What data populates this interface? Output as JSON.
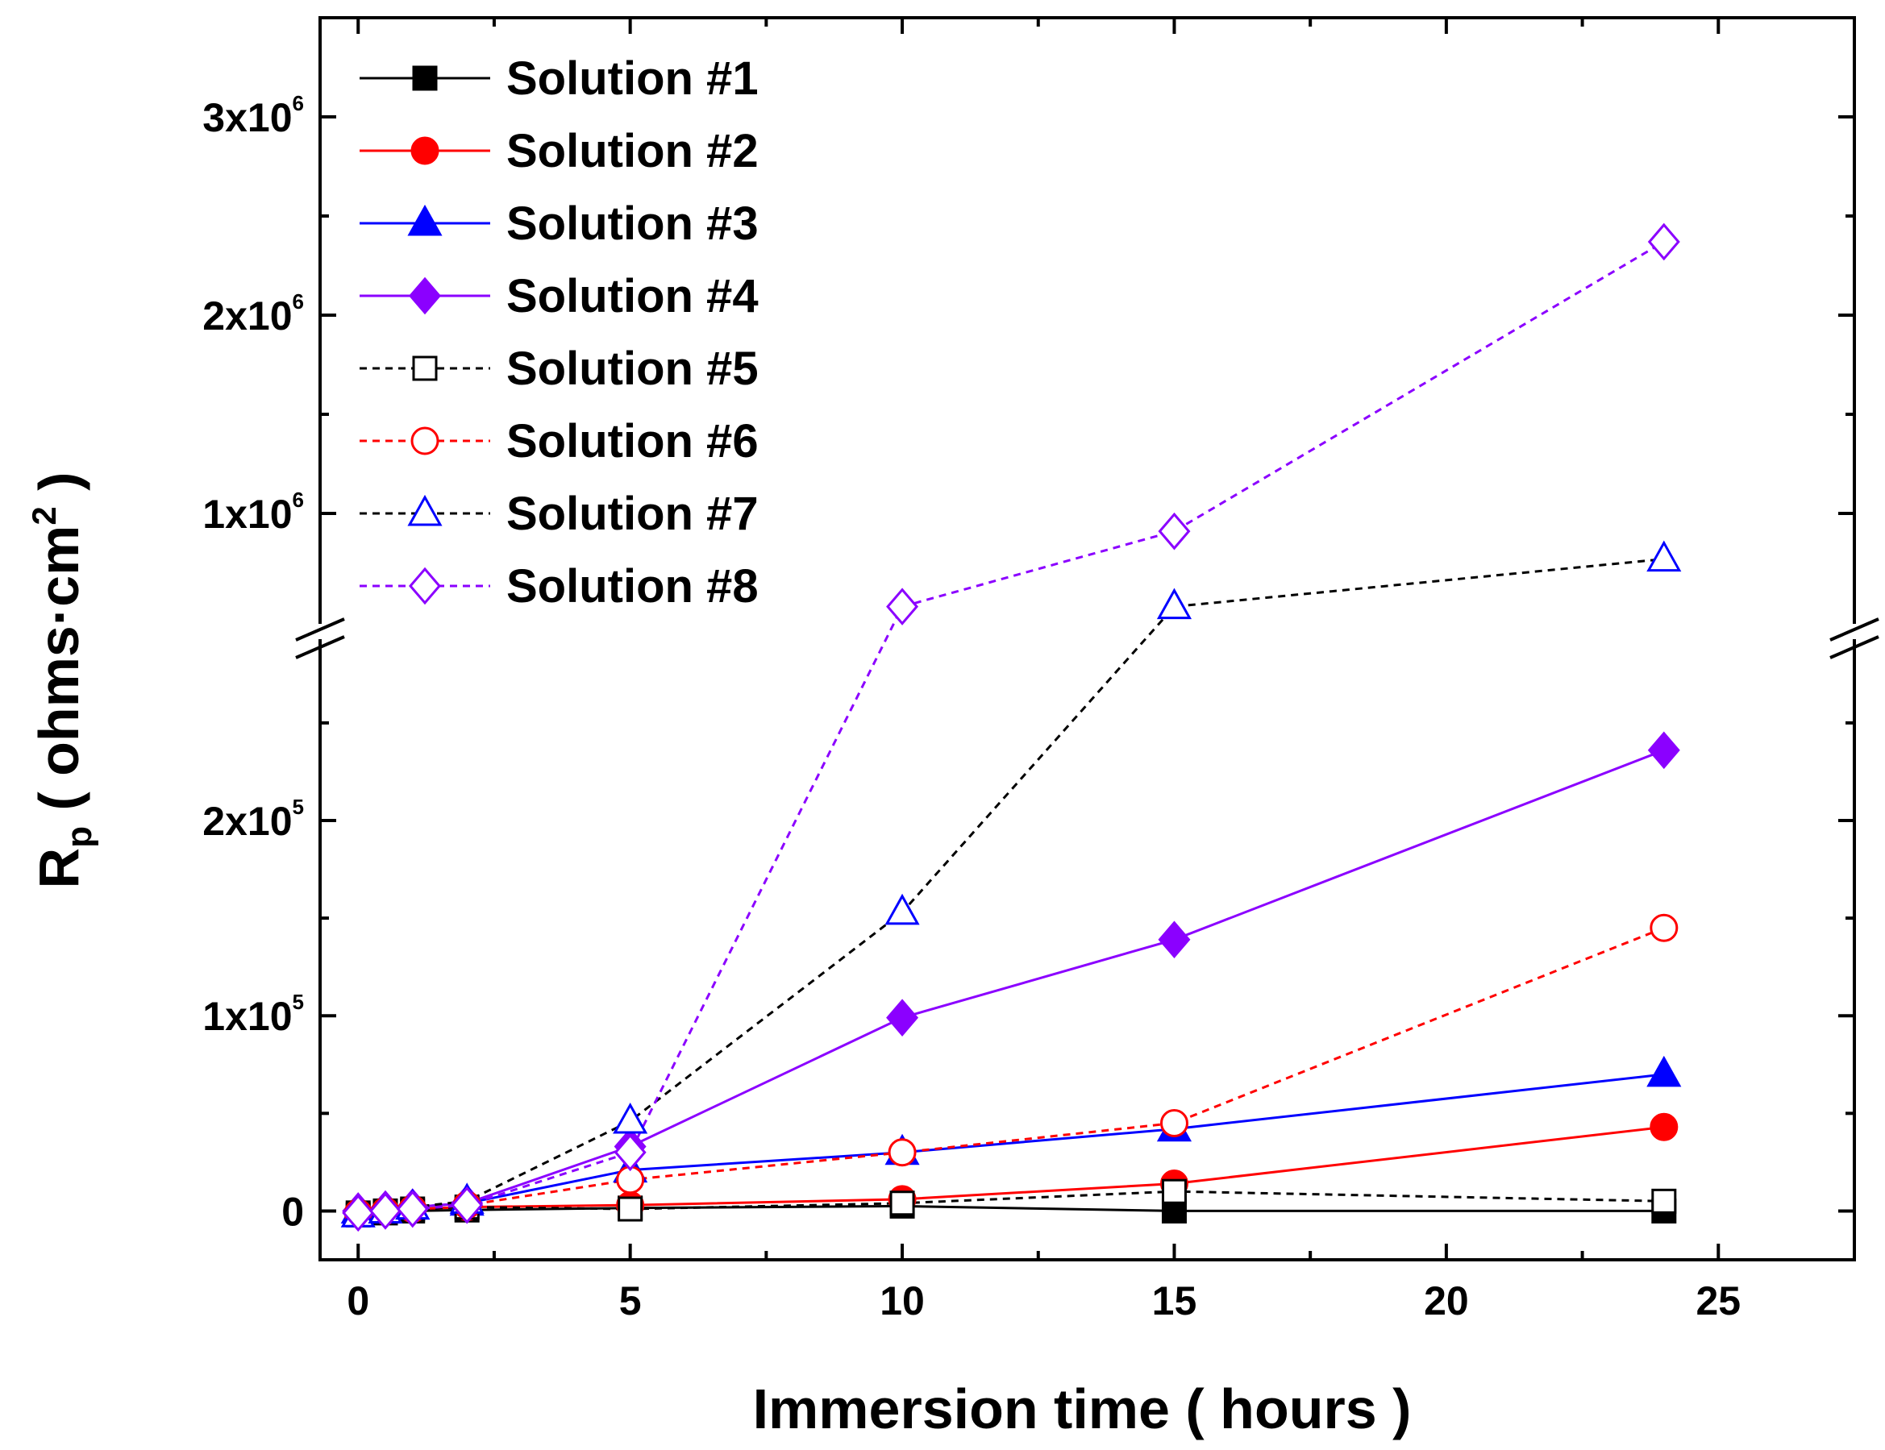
{
  "chart_data": {
    "type": "line",
    "title": "",
    "xlabel": "Immersion time ( hours )",
    "ylabel": {
      "main": "R",
      "sub": "p",
      "unit_pre": " ( ohms·cm",
      "unit_sup": "2",
      "unit_post": " )"
    },
    "xlim": [
      -0.7,
      27.5
    ],
    "xticks": [
      0,
      5,
      10,
      15,
      20,
      25
    ],
    "ylim_lower": [
      -25000,
      290000
    ],
    "ylim_upper": [
      500000,
      3500000
    ],
    "y_axis_break": true,
    "yticks_lower": [
      {
        "value": 0,
        "mantissa": "0",
        "exp": ""
      },
      {
        "value": 100000,
        "mantissa": "1x10",
        "exp": "5"
      },
      {
        "value": 200000,
        "mantissa": "2x10",
        "exp": "5"
      }
    ],
    "yticks_upper": [
      {
        "value": 1000000,
        "mantissa": "1x10",
        "exp": "6"
      },
      {
        "value": 2000000,
        "mantissa": "2x10",
        "exp": "6"
      },
      {
        "value": 3000000,
        "mantissa": "3x10",
        "exp": "6"
      }
    ],
    "legend_position": "top-left",
    "x": [
      0,
      0.5,
      1,
      2,
      5,
      10,
      15,
      24
    ],
    "series": [
      {
        "name": "Solution #1",
        "color": "#000000",
        "dash": "solid",
        "marker": "square",
        "filled": true,
        "values": [
          -2000,
          -1000,
          0,
          500,
          1500,
          2500,
          0,
          0
        ]
      },
      {
        "name": "Solution #2",
        "color": "#ff0000",
        "dash": "solid",
        "marker": "circle",
        "filled": true,
        "values": [
          -1000,
          0,
          1000,
          2000,
          3000,
          6000,
          14000,
          43000
        ]
      },
      {
        "name": "Solution #3",
        "color": "#0000ff",
        "dash": "solid",
        "marker": "triangle",
        "filled": true,
        "values": [
          0,
          1000,
          2000,
          4000,
          21000,
          30000,
          42000,
          70000
        ]
      },
      {
        "name": "Solution #4",
        "color": "#8b00ff",
        "dash": "solid",
        "marker": "diamond",
        "filled": true,
        "values": [
          0,
          1000,
          2000,
          4000,
          33000,
          99000,
          139000,
          236000
        ]
      },
      {
        "name": "Solution #5",
        "color": "#000000",
        "dash": "dash",
        "marker": "square",
        "filled": false,
        "values": [
          -1000,
          0,
          1000,
          2000,
          1000,
          4000,
          10000,
          5000
        ]
      },
      {
        "name": "Solution #6",
        "color": "#ff0000",
        "dash": "dash",
        "marker": "circle",
        "filled": false,
        "values": [
          -1000,
          0,
          1000,
          3000,
          16000,
          30000,
          45000,
          145000
        ]
      },
      {
        "name": "Solution #7",
        "color": "#000000",
        "dash": "dash",
        "marker": "triangle",
        "filled": false,
        "marker_color": "#0000ff",
        "values": [
          -2000,
          0,
          2000,
          5000,
          46000,
          153000,
          530000,
          770000
        ]
      },
      {
        "name": "Solution #8",
        "color": "#8b00ff",
        "dash": "dash",
        "marker": "diamond",
        "filled": false,
        "values": [
          -1000,
          0,
          1000,
          3000,
          30000,
          530000,
          910000,
          2370000
        ]
      }
    ]
  }
}
